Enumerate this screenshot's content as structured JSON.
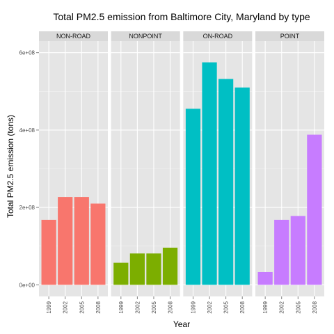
{
  "chart_data": {
    "type": "bar",
    "title": "Total PM2.5 emission from Baltimore City, Maryland by type",
    "xlabel": "Year",
    "ylabel": "Total PM2.5 emission (tons)",
    "ylim": [
      -30000000,
      630000000
    ],
    "yticks": [
      0,
      200000000,
      400000000,
      600000000
    ],
    "ytick_labels": [
      "0e+00",
      "2e+08",
      "4e+08",
      "6e+08"
    ],
    "categories": [
      "1999",
      "2002",
      "2005",
      "2008"
    ],
    "grid": true,
    "legend": "none",
    "facets": [
      {
        "name": "NON-ROAD",
        "color": "#F8766D",
        "values": [
          168000000,
          227000000,
          227000000,
          210000000
        ]
      },
      {
        "name": "NONPOINT",
        "color": "#7CAE00",
        "values": [
          57000000,
          81000000,
          81000000,
          96000000
        ]
      },
      {
        "name": "ON-ROAD",
        "color": "#00BFC4",
        "values": [
          455000000,
          575000000,
          532000000,
          510000000
        ]
      },
      {
        "name": "POINT",
        "color": "#C77CFF",
        "values": [
          33000000,
          168000000,
          178000000,
          388000000
        ]
      }
    ]
  }
}
